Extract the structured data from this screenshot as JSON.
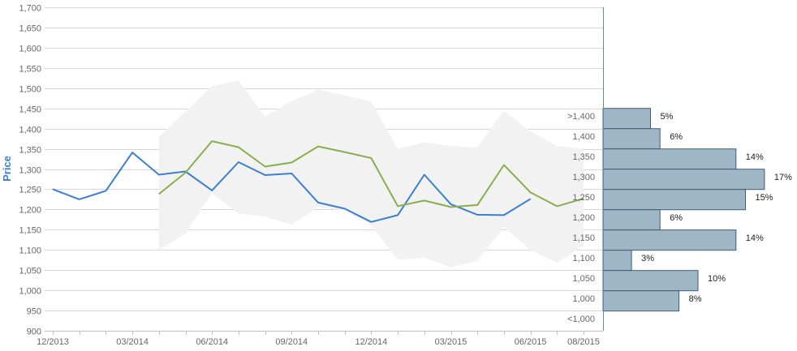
{
  "chart_data": {
    "type": "line",
    "title": "",
    "xlabel": "",
    "ylabel": "Price",
    "ylim": [
      900,
      1700
    ],
    "y_ticks": [
      900,
      950,
      1000,
      1050,
      1100,
      1150,
      1200,
      1250,
      1300,
      1350,
      1400,
      1450,
      1500,
      1550,
      1600,
      1650,
      1700
    ],
    "y_tick_labels": [
      "900",
      "950",
      "1,000",
      "1,050",
      "1,100",
      "1,150",
      "1,200",
      "1,250",
      "1,300",
      "1,350",
      "1,400",
      "1,450",
      "1,500",
      "1,550",
      "1,600",
      "1,650",
      "1,700"
    ],
    "x_range": [
      "2013-12",
      "2015-08"
    ],
    "x_ticks": [
      "2013-12",
      "2014-03",
      "2014-06",
      "2014-09",
      "2014-12",
      "2015-03",
      "2015-06",
      "2015-08"
    ],
    "x_tick_labels": [
      "12/2013",
      "03/2014",
      "06/2014",
      "09/2014",
      "12/2014",
      "03/2015",
      "06/2015",
      "08/2015"
    ],
    "grid": true,
    "legend": "none",
    "series": [
      {
        "type": "line",
        "color": "#3a7fd0",
        "x": [
          "2013-12",
          "2014-01",
          "2014-02",
          "2014-03",
          "2014-04",
          "2014-05",
          "2014-06",
          "2014-07",
          "2014-08",
          "2014-09",
          "2014-10",
          "2014-11",
          "2014-12",
          "2015-01",
          "2015-02",
          "2015-03",
          "2015-04",
          "2015-05",
          "2015-06"
        ],
        "y": [
          1250,
          1225,
          1246,
          1341,
          1286,
          1294,
          1247,
          1317,
          1285,
          1289,
          1217,
          1202,
          1169,
          1186,
          1286,
          1213,
          1187,
          1186,
          1226
        ]
      },
      {
        "type": "line",
        "color": "#8aae4e",
        "x": [
          "2014-04",
          "2014-05",
          "2014-06",
          "2014-07",
          "2014-08",
          "2014-09",
          "2014-10",
          "2014-11",
          "2014-12",
          "2015-01",
          "2015-02",
          "2015-03",
          "2015-04",
          "2015-05",
          "2015-06",
          "2015-07",
          "2015-08"
        ],
        "y": [
          1238,
          1291,
          1369,
          1354,
          1306,
          1316,
          1356,
          1342,
          1327,
          1208,
          1222,
          1206,
          1211,
          1310,
          1242,
          1208,
          1227
        ]
      },
      {
        "type": "area-range",
        "color": "#f2f2f2",
        "x": [
          "2014-04",
          "2014-05",
          "2014-06",
          "2014-07",
          "2014-08",
          "2014-09",
          "2014-10",
          "2014-11",
          "2014-12",
          "2015-01",
          "2015-02",
          "2015-03",
          "2015-04",
          "2015-05",
          "2015-06",
          "2015-07",
          "2015-08"
        ],
        "high": [
          1380,
          1442,
          1505,
          1520,
          1430,
          1468,
          1497,
          1482,
          1467,
          1350,
          1366,
          1357,
          1353,
          1445,
          1393,
          1357,
          1350
        ],
        "low": [
          1100,
          1140,
          1240,
          1190,
          1182,
          1162,
          1206,
          1197,
          1160,
          1076,
          1080,
          1057,
          1073,
          1156,
          1100,
          1068,
          1110
        ]
      }
    ],
    "histogram": {
      "categories": [
        ">1,400",
        "1,400",
        "1,350",
        "1,300",
        "1,250",
        "1,200",
        "1,150",
        "1,100",
        "1,050",
        "1,000",
        "<1,000"
      ],
      "values": [
        5,
        6,
        14,
        17,
        15,
        6,
        14,
        3,
        10,
        8,
        0
      ],
      "labels": [
        "5%",
        "6%",
        "14%",
        "17%",
        "15%",
        "6%",
        "14%",
        "3%",
        "10%",
        "8%"
      ],
      "color": "#9fb6c6"
    }
  },
  "style": {
    "y_title_color": "#3a7fd0",
    "axis_label_color": "#666666",
    "grid_color": "#d6d6d6",
    "axis_line_color": "#6a8aa8"
  }
}
